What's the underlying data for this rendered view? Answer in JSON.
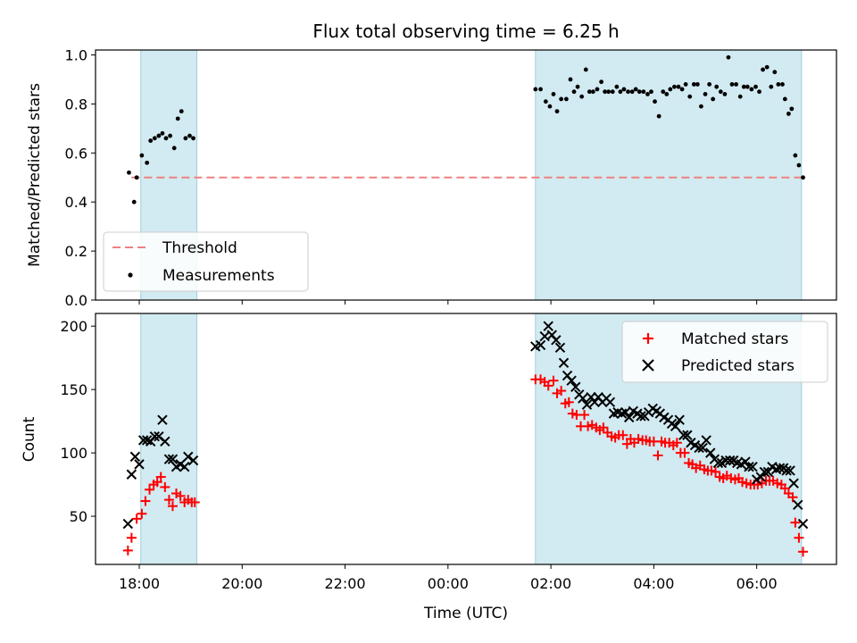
{
  "chart_data": [
    {
      "type": "scatter",
      "title": "Flux total observing time = 6.25 h",
      "xlabel": "",
      "ylabel": "Matched/Predicted stars",
      "ylim": [
        0.0,
        1.02
      ],
      "yticks": [
        "0.0",
        "0.2",
        "0.4",
        "0.6",
        "0.8",
        "1.0"
      ],
      "xlim_hours": [
        -0.85,
        13.55
      ],
      "shaded_intervals_hours": [
        [
          0.03,
          1.12
        ],
        [
          7.7,
          12.87
        ]
      ],
      "threshold": 0.5,
      "legend_position": "lower-left",
      "legend": [
        "Threshold",
        "Measurements"
      ],
      "series": [
        {
          "name": "Measurements",
          "points": [
            [
              -0.2,
              0.52
            ],
            [
              -0.1,
              0.4
            ],
            [
              -0.05,
              0.5
            ],
            [
              0.05,
              0.59
            ],
            [
              0.15,
              0.56
            ],
            [
              0.22,
              0.65
            ],
            [
              0.3,
              0.66
            ],
            [
              0.38,
              0.67
            ],
            [
              0.45,
              0.68
            ],
            [
              0.52,
              0.66
            ],
            [
              0.6,
              0.67
            ],
            [
              0.68,
              0.62
            ],
            [
              0.75,
              0.74
            ],
            [
              0.82,
              0.77
            ],
            [
              0.9,
              0.66
            ],
            [
              0.98,
              0.67
            ],
            [
              1.05,
              0.66
            ],
            [
              7.7,
              0.86
            ],
            [
              7.8,
              0.86
            ],
            [
              7.9,
              0.81
            ],
            [
              7.98,
              0.79
            ],
            [
              8.05,
              0.84
            ],
            [
              8.12,
              0.77
            ],
            [
              8.2,
              0.82
            ],
            [
              8.3,
              0.82
            ],
            [
              8.38,
              0.9
            ],
            [
              8.45,
              0.85
            ],
            [
              8.52,
              0.87
            ],
            [
              8.6,
              0.83
            ],
            [
              8.68,
              0.94
            ],
            [
              8.75,
              0.85
            ],
            [
              8.82,
              0.85
            ],
            [
              8.9,
              0.86
            ],
            [
              8.98,
              0.89
            ],
            [
              9.05,
              0.85
            ],
            [
              9.12,
              0.85
            ],
            [
              9.2,
              0.85
            ],
            [
              9.28,
              0.87
            ],
            [
              9.35,
              0.85
            ],
            [
              9.42,
              0.86
            ],
            [
              9.5,
              0.85
            ],
            [
              9.58,
              0.85
            ],
            [
              9.65,
              0.86
            ],
            [
              9.72,
              0.85
            ],
            [
              9.8,
              0.85
            ],
            [
              9.88,
              0.84
            ],
            [
              9.95,
              0.85
            ],
            [
              10.02,
              0.81
            ],
            [
              10.1,
              0.75
            ],
            [
              10.18,
              0.85
            ],
            [
              10.25,
              0.84
            ],
            [
              10.32,
              0.86
            ],
            [
              10.4,
              0.87
            ],
            [
              10.48,
              0.87
            ],
            [
              10.55,
              0.86
            ],
            [
              10.62,
              0.88
            ],
            [
              10.7,
              0.83
            ],
            [
              10.78,
              0.88
            ],
            [
              10.85,
              0.88
            ],
            [
              10.92,
              0.79
            ],
            [
              11.0,
              0.84
            ],
            [
              11.08,
              0.88
            ],
            [
              11.15,
              0.82
            ],
            [
              11.22,
              0.87
            ],
            [
              11.3,
              0.85
            ],
            [
              11.38,
              0.84
            ],
            [
              11.45,
              0.99
            ],
            [
              11.52,
              0.88
            ],
            [
              11.6,
              0.88
            ],
            [
              11.68,
              0.83
            ],
            [
              11.75,
              0.87
            ],
            [
              11.82,
              0.87
            ],
            [
              11.9,
              0.86
            ],
            [
              11.98,
              0.87
            ],
            [
              12.05,
              0.85
            ],
            [
              12.12,
              0.94
            ],
            [
              12.2,
              0.95
            ],
            [
              12.28,
              0.87
            ],
            [
              12.35,
              0.93
            ],
            [
              12.42,
              0.88
            ],
            [
              12.5,
              0.88
            ],
            [
              12.55,
              0.82
            ],
            [
              12.62,
              0.76
            ],
            [
              12.68,
              0.78
            ],
            [
              12.75,
              0.59
            ],
            [
              12.82,
              0.55
            ],
            [
              12.9,
              0.5
            ]
          ]
        }
      ]
    },
    {
      "type": "scatter",
      "title": "",
      "xlabel": "Time (UTC)",
      "ylabel": "Count",
      "ylim": [
        12,
        210
      ],
      "yticks": [
        "50",
        "100",
        "150",
        "200"
      ],
      "xlim_hours": [
        -0.85,
        13.55
      ],
      "xticks": [
        "18:00",
        "20:00",
        "22:00",
        "00:00",
        "02:00",
        "04:00",
        "06:00"
      ],
      "shaded_intervals_hours": [
        [
          0.03,
          1.12
        ],
        [
          7.7,
          12.87
        ]
      ],
      "legend_position": "upper-right",
      "legend": [
        "Matched stars",
        "Predicted stars"
      ],
      "series": [
        {
          "name": "Matched stars",
          "marker": "plus",
          "color": "#ff0000",
          "points": [
            [
              -0.22,
              23
            ],
            [
              -0.15,
              33
            ],
            [
              -0.05,
              48
            ],
            [
              0.05,
              52
            ],
            [
              0.12,
              62
            ],
            [
              0.2,
              71
            ],
            [
              0.28,
              75
            ],
            [
              0.35,
              77
            ],
            [
              0.42,
              81
            ],
            [
              0.5,
              73
            ],
            [
              0.58,
              63
            ],
            [
              0.65,
              58
            ],
            [
              0.72,
              68
            ],
            [
              0.8,
              66
            ],
            [
              0.88,
              61
            ],
            [
              0.95,
              63
            ],
            [
              1.02,
              61
            ],
            [
              1.08,
              61
            ],
            [
              7.7,
              158
            ],
            [
              7.8,
              158
            ],
            [
              7.88,
              156
            ],
            [
              7.95,
              153
            ],
            [
              8.05,
              157
            ],
            [
              8.12,
              147
            ],
            [
              8.2,
              149
            ],
            [
              8.28,
              139
            ],
            [
              8.35,
              140
            ],
            [
              8.42,
              131
            ],
            [
              8.5,
              130
            ],
            [
              8.58,
              121
            ],
            [
              8.65,
              130
            ],
            [
              8.72,
              121
            ],
            [
              8.8,
              122
            ],
            [
              8.88,
              120
            ],
            [
              8.95,
              118
            ],
            [
              9.02,
              120
            ],
            [
              9.1,
              116
            ],
            [
              9.18,
              113
            ],
            [
              9.25,
              112
            ],
            [
              9.32,
              114
            ],
            [
              9.4,
              114
            ],
            [
              9.48,
              107
            ],
            [
              9.55,
              111
            ],
            [
              9.62,
              108
            ],
            [
              9.7,
              111
            ],
            [
              9.78,
              110
            ],
            [
              9.85,
              110
            ],
            [
              9.92,
              109
            ],
            [
              10.0,
              109
            ],
            [
              10.08,
              98
            ],
            [
              10.15,
              109
            ],
            [
              10.22,
              108
            ],
            [
              10.3,
              108
            ],
            [
              10.38,
              106
            ],
            [
              10.45,
              108
            ],
            [
              10.52,
              100
            ],
            [
              10.6,
              100
            ],
            [
              10.68,
              92
            ],
            [
              10.75,
              91
            ],
            [
              10.82,
              88
            ],
            [
              10.9,
              90
            ],
            [
              10.98,
              87
            ],
            [
              11.05,
              86
            ],
            [
              11.12,
              86
            ],
            [
              11.2,
              85
            ],
            [
              11.28,
              81
            ],
            [
              11.35,
              80
            ],
            [
              11.42,
              82
            ],
            [
              11.5,
              80
            ],
            [
              11.58,
              79
            ],
            [
              11.65,
              80
            ],
            [
              11.72,
              77
            ],
            [
              11.8,
              76
            ],
            [
              11.88,
              75
            ],
            [
              11.95,
              75
            ],
            [
              12.02,
              75
            ],
            [
              12.1,
              76
            ],
            [
              12.18,
              78
            ],
            [
              12.25,
              78
            ],
            [
              12.32,
              78
            ],
            [
              12.4,
              76
            ],
            [
              12.48,
              75
            ],
            [
              12.55,
              72
            ],
            [
              12.62,
              68
            ],
            [
              12.7,
              65
            ],
            [
              12.75,
              45
            ],
            [
              12.82,
              33
            ],
            [
              12.9,
              22
            ]
          ]
        },
        {
          "name": "Predicted stars",
          "marker": "x",
          "color": "#000000",
          "points": [
            [
              -0.22,
              44
            ],
            [
              -0.15,
              83
            ],
            [
              -0.08,
              97
            ],
            [
              0.0,
              91
            ],
            [
              0.08,
              110
            ],
            [
              0.15,
              110
            ],
            [
              0.22,
              109
            ],
            [
              0.3,
              113
            ],
            [
              0.38,
              113
            ],
            [
              0.45,
              126
            ],
            [
              0.5,
              109
            ],
            [
              0.58,
              95
            ],
            [
              0.65,
              95
            ],
            [
              0.72,
              89
            ],
            [
              0.8,
              91
            ],
            [
              0.88,
              89
            ],
            [
              0.95,
              97
            ],
            [
              1.05,
              94
            ],
            [
              7.7,
              184
            ],
            [
              7.8,
              185
            ],
            [
              7.88,
              192
            ],
            [
              7.95,
              200
            ],
            [
              8.02,
              193
            ],
            [
              8.1,
              189
            ],
            [
              8.18,
              183
            ],
            [
              8.25,
              171
            ],
            [
              8.32,
              161
            ],
            [
              8.4,
              157
            ],
            [
              8.48,
              152
            ],
            [
              8.55,
              146
            ],
            [
              8.62,
              143
            ],
            [
              8.7,
              138
            ],
            [
              8.78,
              144
            ],
            [
              8.85,
              140
            ],
            [
              8.92,
              144
            ],
            [
              9.0,
              140
            ],
            [
              9.08,
              143
            ],
            [
              9.15,
              140
            ],
            [
              9.22,
              131
            ],
            [
              9.3,
              132
            ],
            [
              9.38,
              131
            ],
            [
              9.45,
              132
            ],
            [
              9.52,
              128
            ],
            [
              9.6,
              133
            ],
            [
              9.68,
              131
            ],
            [
              9.75,
              129
            ],
            [
              9.82,
              129
            ],
            [
              9.9,
              132
            ],
            [
              9.98,
              135
            ],
            [
              10.05,
              133
            ],
            [
              10.12,
              131
            ],
            [
              10.2,
              128
            ],
            [
              10.28,
              126
            ],
            [
              10.35,
              123
            ],
            [
              10.42,
              121
            ],
            [
              10.5,
              126
            ],
            [
              10.58,
              114
            ],
            [
              10.65,
              114
            ],
            [
              10.72,
              108
            ],
            [
              10.8,
              106
            ],
            [
              10.88,
              104
            ],
            [
              10.95,
              104
            ],
            [
              11.02,
              110
            ],
            [
              11.1,
              100
            ],
            [
              11.18,
              95
            ],
            [
              11.25,
              92
            ],
            [
              11.32,
              92
            ],
            [
              11.4,
              94
            ],
            [
              11.48,
              94
            ],
            [
              11.55,
              94
            ],
            [
              11.62,
              92
            ],
            [
              11.7,
              91
            ],
            [
              11.78,
              93
            ],
            [
              11.85,
              89
            ],
            [
              11.92,
              89
            ],
            [
              12.0,
              79
            ],
            [
              12.08,
              81
            ],
            [
              12.15,
              85
            ],
            [
              12.22,
              85
            ],
            [
              12.3,
              89
            ],
            [
              12.38,
              87
            ],
            [
              12.45,
              88
            ],
            [
              12.52,
              88
            ],
            [
              12.58,
              86
            ],
            [
              12.65,
              86
            ],
            [
              12.72,
              76
            ],
            [
              12.8,
              59
            ],
            [
              12.9,
              44
            ]
          ]
        }
      ]
    }
  ],
  "colors": {
    "shade": "#add8e6",
    "threshold": "#f08080",
    "matched": "#ff0000",
    "predicted": "#000000",
    "measurement": "#000000"
  }
}
